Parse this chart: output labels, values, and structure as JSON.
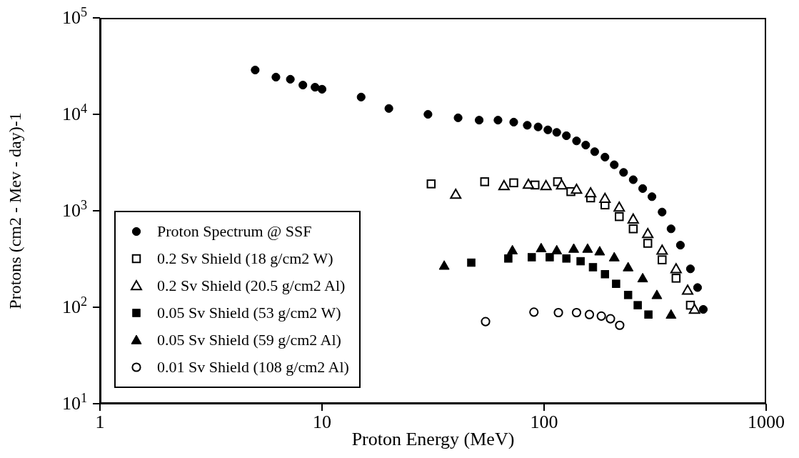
{
  "chart_data": {
    "type": "scatter",
    "xlabel": "Proton Energy (MeV)",
    "ylabel": "Protons (cm2 - Mev - day)-1",
    "log": "xy",
    "xlim": [
      1,
      1000
    ],
    "xticks": [
      1,
      10,
      100,
      1000
    ],
    "ylim": [
      10,
      100000
    ],
    "yticks": [
      {
        "value": 10,
        "label": "10$^{1}$"
      },
      {
        "value": 100,
        "label": "10$^{2}$"
      },
      {
        "value": 1000,
        "label": "10$^{3}$"
      },
      {
        "value": 10000,
        "label": "10$^{4}$"
      },
      {
        "value": 100000,
        "label": "10$^{5}$"
      }
    ],
    "legend": "bottom left",
    "series": [
      {
        "name": "Proton Spectrum @ SSF",
        "color": "#000000",
        "marker": "circle",
        "x": [
          5,
          6.2,
          7.2,
          8.2,
          9.3,
          10,
          15,
          20,
          30,
          41,
          51,
          62,
          73,
          84,
          94,
          104,
          114,
          126,
          140,
          154,
          169,
          188,
          207,
          228,
          252,
          278,
          306,
          340,
          373,
          411,
          456,
          491,
          521
        ],
        "values": [
          28800,
          24300,
          23100,
          20100,
          19100,
          18200,
          15100,
          11500,
          10000,
          9200,
          8700,
          8700,
          8300,
          7700,
          7400,
          6900,
          6500,
          6000,
          5300,
          4800,
          4100,
          3600,
          3000,
          2500,
          2100,
          1700,
          1400,
          970,
          650,
          440,
          250,
          160,
          95
        ]
      },
      {
        "name": "0.2 Sv Shield (18 g/cm2 W)",
        "color": "#000000",
        "marker": "square-open",
        "x": [
          31,
          54,
          73,
          91,
          115,
          132,
          162,
          188,
          218,
          252,
          293,
          340,
          393,
          456
        ],
        "values": [
          1900,
          2000,
          1950,
          1850,
          2000,
          1580,
          1360,
          1150,
          870,
          650,
          460,
          310,
          200,
          105
        ]
      },
      {
        "name": "0.2 Sv Shield (20.5 g/cm2 Al)",
        "color": "#000000",
        "marker": "triangle-open",
        "x": [
          40,
          66,
          85,
          102,
          120,
          140,
          162,
          188,
          218,
          252,
          293,
          340,
          393,
          443,
          476
        ],
        "values": [
          1480,
          1820,
          1880,
          1820,
          1850,
          1670,
          1530,
          1340,
          1090,
          820,
          580,
          390,
          250,
          150,
          95
        ]
      },
      {
        "name": "0.05 Sv Shield (53 g/cm2 W)",
        "color": "#000000",
        "marker": "square",
        "x": [
          47,
          69,
          88,
          106,
          126,
          146,
          166,
          188,
          211,
          239,
          264,
          295
        ],
        "values": [
          290,
          320,
          330,
          330,
          320,
          300,
          260,
          220,
          175,
          134,
          105,
          84
        ]
      },
      {
        "name": "0.05 Sv Shield (59 g/cm2 Al)",
        "color": "#000000",
        "marker": "triangle",
        "x": [
          35.5,
          72,
          97,
          114,
          136,
          157,
          178,
          207,
          239,
          278,
          322,
          373
        ],
        "values": [
          270,
          390,
          410,
          390,
          405,
          405,
          380,
          330,
          260,
          200,
          134,
          84
        ]
      },
      {
        "name": "0.01 Sv Shield (108 g/cm2 Al)",
        "color": "#000000",
        "marker": "circle-open",
        "x": [
          54.5,
          90,
          116,
          140,
          160,
          181,
          199,
          219
        ],
        "values": [
          71,
          89,
          88,
          88,
          84,
          81,
          76,
          65
        ]
      }
    ]
  }
}
